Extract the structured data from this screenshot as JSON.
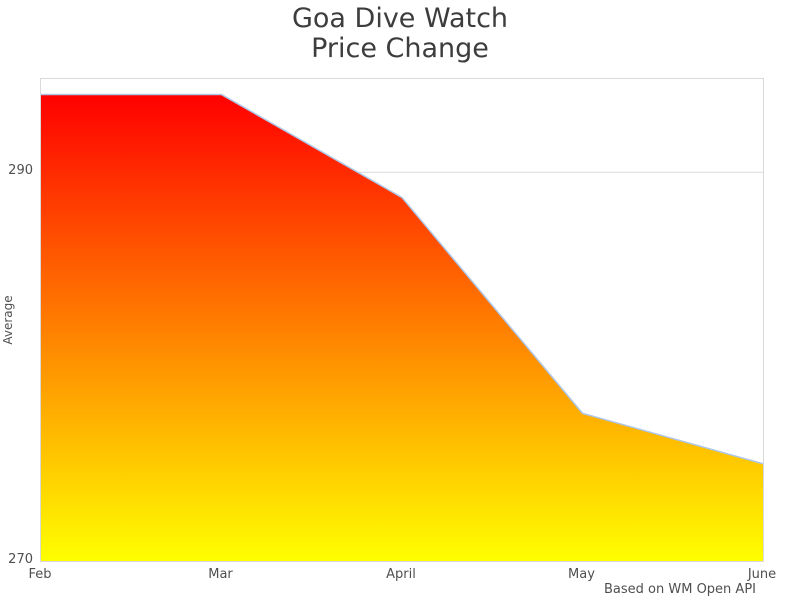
{
  "chart_data": {
    "type": "area",
    "title": "Goa Dive Watch\nPrice Change",
    "categories": [
      "Feb",
      "Mar",
      "April",
      "May",
      "June"
    ],
    "values": [
      294,
      294,
      288.7,
      277.6,
      275
    ],
    "xlabel": "",
    "ylabel": "Average",
    "ylim": [
      270,
      294.8
    ],
    "yticks": [
      270,
      290
    ],
    "grid": "horizontal-ticks-only",
    "legend": "none",
    "caption": "Based on WM Open API",
    "colors": {
      "fill_top": "#ff0000",
      "fill_bottom": "#ffff00",
      "line": "#aec7e8",
      "grid": "#d9d9d9",
      "title_text": "#3d3d3d",
      "tick_text": "#4f4f4f"
    }
  }
}
